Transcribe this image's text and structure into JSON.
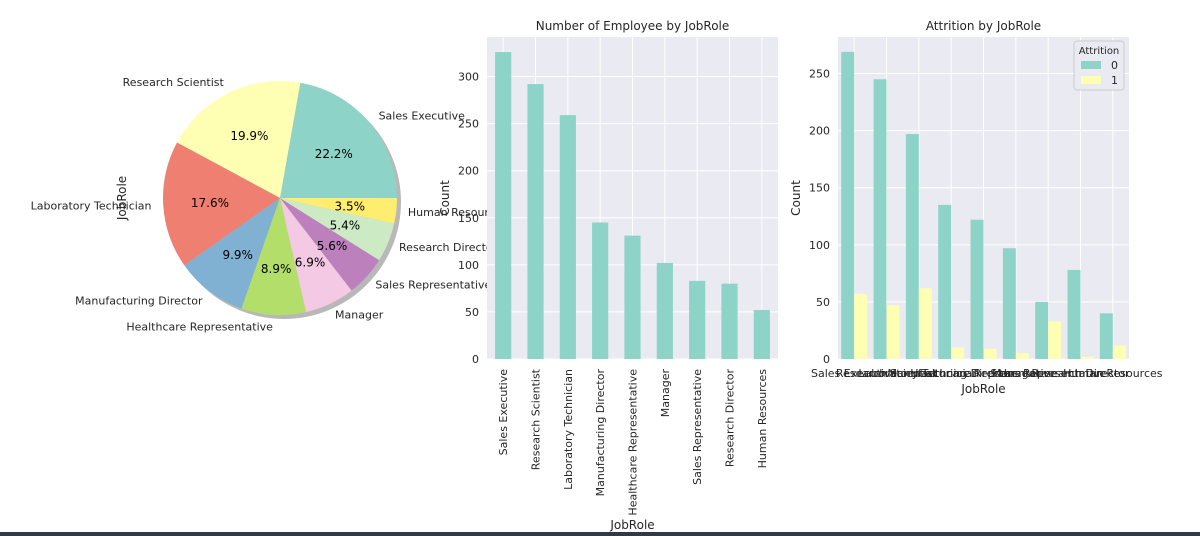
{
  "figure": {
    "background": "#ffffff",
    "axes_background": "#eaeaf2",
    "grid_color": "#ffffff",
    "bottom_bar_color": "#2f3a44"
  },
  "chart_data": [
    {
      "type": "pie",
      "ylabel": "JobRole",
      "labels": [
        "Sales Executive",
        "Research Scientist",
        "Laboratory Technician",
        "Manufacturing Director",
        "Healthcare Representative",
        "Manager",
        "Sales Representative",
        "Research Director",
        "Human Resources"
      ],
      "values": [
        22.2,
        19.9,
        17.6,
        9.9,
        8.9,
        6.9,
        5.6,
        5.4,
        3.5
      ],
      "pct_labels": [
        "22.2%",
        "19.9%",
        "17.6%",
        "9.9%",
        "8.9%",
        "6.9%",
        "5.6%",
        "5.4%",
        "3.5%"
      ],
      "colors": [
        "#8dd3c7",
        "#ffffb3",
        "#ef8071",
        "#80b1d3",
        "#b3de69",
        "#f4c9e4",
        "#bc80bd",
        "#ccebc5",
        "#ffed6f"
      ],
      "shadow": true
    },
    {
      "type": "bar",
      "title": "Number of Employee by JobRole",
      "xlabel": "JobRole",
      "ylabel": "Count",
      "categories": [
        "Sales Executive",
        "Research Scientist",
        "Laboratory Technician",
        "Manufacturing Director",
        "Healthcare Representative",
        "Manager",
        "Sales Representative",
        "Research Director",
        "Human Resources"
      ],
      "values": [
        326,
        292,
        259,
        145,
        131,
        102,
        83,
        80,
        52
      ],
      "ylim": [
        0,
        342
      ],
      "yticks": [
        0,
        50,
        100,
        150,
        200,
        250,
        300
      ],
      "color": "#8dd3c7",
      "grid": true
    },
    {
      "type": "bar",
      "title": "Attrition by JobRole",
      "xlabel": "JobRole",
      "ylabel": "Count",
      "categories": [
        "Sales Executive",
        "Research Scientist",
        "Laboratory Technician",
        "Manufacturing Director",
        "Healthcare Representative",
        "Manager",
        "Sales Representative",
        "Research Director",
        "Human Resources"
      ],
      "series": [
        {
          "name": "0",
          "values": [
            269,
            245,
            197,
            135,
            122,
            97,
            50,
            78,
            40
          ],
          "color": "#8dd3c7"
        },
        {
          "name": "1",
          "values": [
            57,
            47,
            62,
            10,
            9,
            5,
            33,
            2,
            12
          ],
          "color": "#ffffb3"
        }
      ],
      "legend_title": "Attrition",
      "legend_position": "top-right",
      "ylim": [
        0,
        282
      ],
      "yticks": [
        0,
        50,
        100,
        150,
        200,
        250
      ],
      "grid": true
    }
  ]
}
